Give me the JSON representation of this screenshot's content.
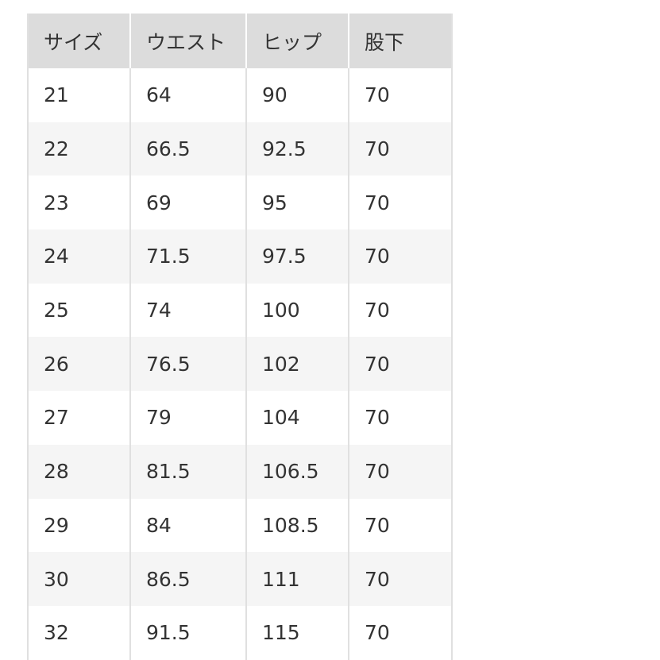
{
  "table": {
    "headers": [
      "サイズ",
      "ウエスト",
      "ヒップ",
      "股下"
    ],
    "rows": [
      [
        "21",
        "64",
        "90",
        "70"
      ],
      [
        "22",
        "66.5",
        "92.5",
        "70"
      ],
      [
        "23",
        "69",
        "95",
        "70"
      ],
      [
        "24",
        "71.5",
        "97.5",
        "70"
      ],
      [
        "25",
        "74",
        "100",
        "70"
      ],
      [
        "26",
        "76.5",
        "102",
        "70"
      ],
      [
        "27",
        "79",
        "104",
        "70"
      ],
      [
        "28",
        "81.5",
        "106.5",
        "70"
      ],
      [
        "29",
        "84",
        "108.5",
        "70"
      ],
      [
        "30",
        "86.5",
        "111",
        "70"
      ],
      [
        "32",
        "91.5",
        "115",
        "70"
      ]
    ]
  },
  "colors": {
    "header_bg": "#dcdcdc",
    "stripe_bg": "#f5f5f5",
    "text": "#333333"
  }
}
